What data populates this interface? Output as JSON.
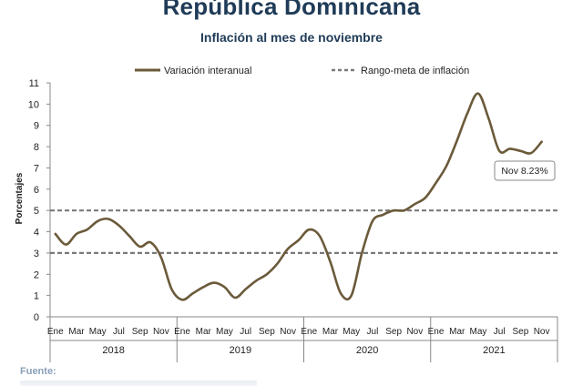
{
  "title": "República Dominicana",
  "subtitle": "Inflación al mes de noviembre",
  "source_label": "Fuente:",
  "chart_data": {
    "type": "line",
    "title": "Inflación al mes de noviembre",
    "ylabel": "Porcentajes",
    "ylim": [
      0,
      11
    ],
    "yticks": [
      0,
      1,
      2,
      3,
      4,
      5,
      6,
      7,
      8,
      9,
      10,
      11
    ],
    "grid": false,
    "legend_position": "top",
    "month_labels": [
      "Ene",
      "Mar",
      "May",
      "Jul",
      "Sep",
      "Nov"
    ],
    "years": [
      "2018",
      "2019",
      "2020",
      "2021"
    ],
    "series": [
      {
        "name": "Variación interanual",
        "color": "#6b5a3a",
        "style": "solid",
        "values": [
          3.9,
          3.4,
          3.9,
          4.1,
          4.5,
          4.6,
          4.3,
          3.8,
          3.3,
          3.5,
          2.8,
          1.3,
          0.8,
          1.1,
          1.4,
          1.6,
          1.4,
          0.9,
          1.3,
          1.7,
          2.0,
          2.5,
          3.2,
          3.6,
          4.1,
          3.8,
          2.6,
          1.1,
          1.0,
          3.0,
          4.5,
          4.8,
          5.0,
          5.0,
          5.3,
          5.6,
          6.3,
          7.1,
          8.3,
          9.6,
          10.5,
          9.3,
          7.8,
          7.9,
          7.8,
          7.7,
          8.23
        ]
      },
      {
        "name": "Rango-meta de inflación",
        "color": "#7a7a7a",
        "style": "dashed",
        "band": [
          3,
          5
        ]
      }
    ],
    "annotation": {
      "text": "Nov 8.23%",
      "series_index": 0,
      "point_index": 46
    }
  }
}
